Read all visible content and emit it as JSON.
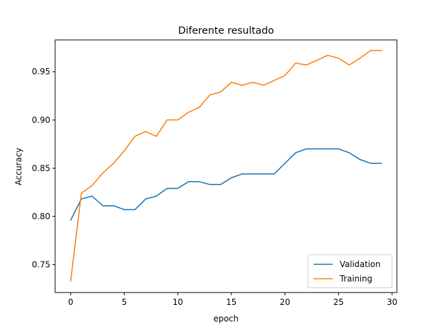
{
  "chart_data": {
    "type": "line",
    "title": "Diferente resultado",
    "xlabel": "epoch",
    "ylabel": "Accuracy",
    "xlim": [
      -1.45,
      30.45
    ],
    "ylim": [
      0.721,
      0.983
    ],
    "xticks": [
      0,
      5,
      10,
      15,
      20,
      25,
      30
    ],
    "yticks": [
      0.75,
      0.8,
      0.85,
      0.9,
      0.95
    ],
    "ytick_labels": [
      "0.75",
      "0.80",
      "0.85",
      "0.90",
      "0.95"
    ],
    "grid": false,
    "legend_position": "lower-right",
    "x": [
      0,
      1,
      2,
      3,
      4,
      5,
      6,
      7,
      8,
      9,
      10,
      11,
      12,
      13,
      14,
      15,
      16,
      17,
      18,
      19,
      20,
      21,
      22,
      23,
      24,
      25,
      26,
      27,
      28,
      29
    ],
    "series": [
      {
        "name": "Validation",
        "color": "#1f77b4",
        "values": [
          0.796,
          0.818,
          0.821,
          0.811,
          0.811,
          0.807,
          0.807,
          0.818,
          0.821,
          0.829,
          0.829,
          0.836,
          0.836,
          0.833,
          0.833,
          0.84,
          0.844,
          0.844,
          0.844,
          0.844,
          0.855,
          0.866,
          0.87,
          0.87,
          0.87,
          0.87,
          0.866,
          0.859,
          0.855,
          0.855
        ]
      },
      {
        "name": "Training",
        "color": "#ff7f0e",
        "values": [
          0.733,
          0.824,
          0.832,
          0.845,
          0.855,
          0.868,
          0.883,
          0.888,
          0.883,
          0.9,
          0.9,
          0.908,
          0.913,
          0.926,
          0.929,
          0.939,
          0.936,
          0.939,
          0.936,
          0.941,
          0.946,
          0.959,
          0.957,
          0.962,
          0.967,
          0.964,
          0.957,
          0.964,
          0.972,
          0.972
        ]
      }
    ]
  }
}
